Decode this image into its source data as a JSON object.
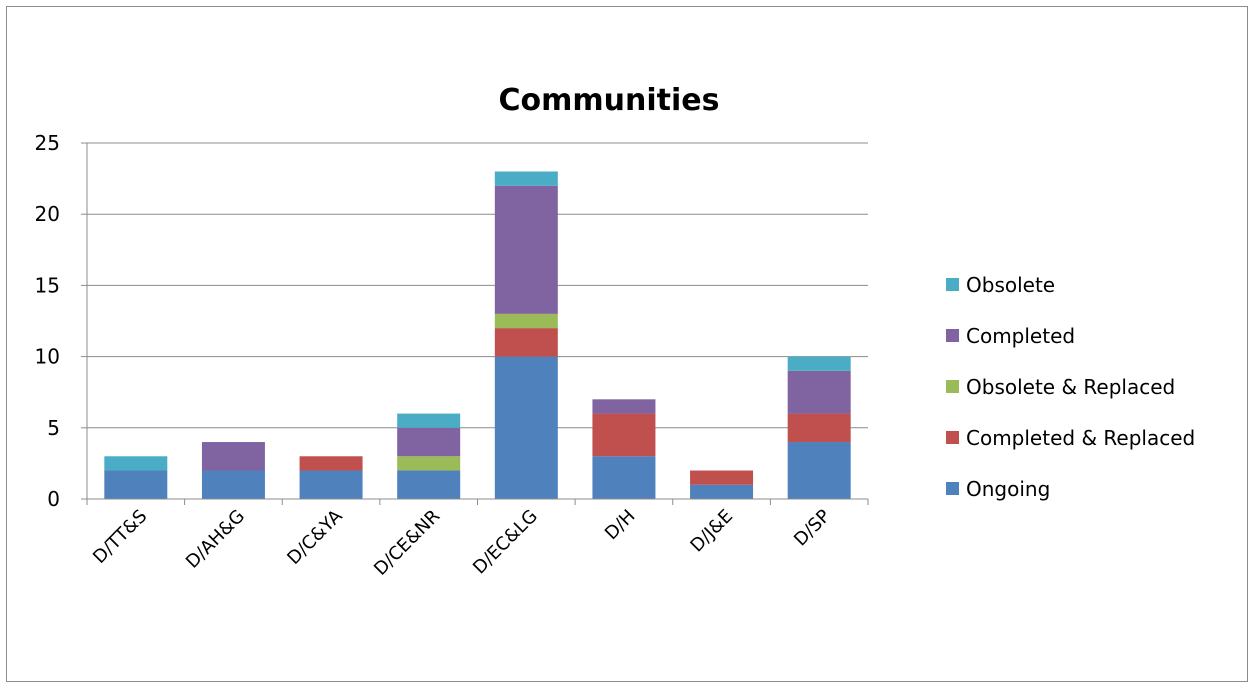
{
  "chart_data": {
    "type": "bar",
    "stacked": true,
    "title": "Communities",
    "xlabel": "",
    "ylabel": "",
    "ylim": [
      0,
      25
    ],
    "yticks": [
      0,
      5,
      10,
      15,
      20,
      25
    ],
    "grid": true,
    "legend_position": "right",
    "categories": [
      "D/TT&S",
      "D/AH&G",
      "D/C&YA",
      "D/CE&NR",
      "D/EC&LG",
      "D/H",
      "D/J&E",
      "D/SP"
    ],
    "series": [
      {
        "name": "Ongoing",
        "color": "#4F81BD",
        "values": [
          2,
          2,
          2,
          2,
          10,
          3,
          1,
          4
        ]
      },
      {
        "name": "Completed & Replaced",
        "color": "#C0504D",
        "values": [
          0,
          0,
          1,
          0,
          2,
          3,
          1,
          2
        ]
      },
      {
        "name": "Obsolete & Replaced",
        "color": "#9BBB59",
        "values": [
          0,
          0,
          0,
          1,
          1,
          0,
          0,
          0
        ]
      },
      {
        "name": "Completed",
        "color": "#8064A2",
        "values": [
          0,
          2,
          0,
          2,
          9,
          1,
          0,
          3
        ]
      },
      {
        "name": "Obsolete",
        "color": "#4BACC6",
        "values": [
          1,
          0,
          0,
          1,
          1,
          0,
          0,
          1
        ]
      }
    ],
    "legend_order": [
      "Obsolete",
      "Completed",
      "Obsolete & Replaced",
      "Completed & Replaced",
      "Ongoing"
    ]
  }
}
